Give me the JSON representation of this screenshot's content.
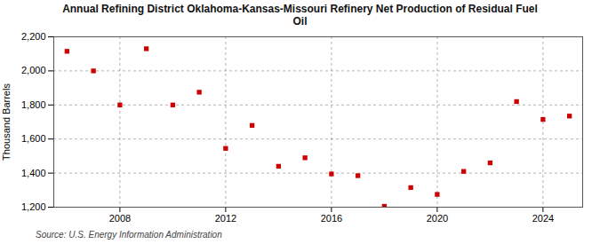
{
  "chart_data": {
    "type": "scatter",
    "title": "Annual Refining District Oklahoma-Kansas-Missouri Refinery Net Production of Residual Fuel\nOil",
    "ylabel": "Thousand Barrels",
    "annotations": [
      "Source: U.S. Energy Information Administration"
    ],
    "x": [
      2006,
      2007,
      2008,
      2009,
      2010,
      2011,
      2012,
      2013,
      2014,
      2015,
      2016,
      2017,
      2018,
      2019,
      2020,
      2021,
      2022,
      2023,
      2024,
      2025
    ],
    "values": [
      2115,
      2000,
      1800,
      2130,
      1800,
      1875,
      1545,
      1680,
      1440,
      1490,
      1395,
      1385,
      1205,
      1315,
      1275,
      1410,
      1460,
      1820,
      1715,
      1735
    ],
    "color": "#cc0000",
    "marker": "square",
    "xlim": [
      2005.5,
      2025.5
    ],
    "xticks": [
      2008,
      2012,
      2016,
      2020,
      2024
    ],
    "ylim": [
      1200,
      2200
    ],
    "yticks": [
      {
        "value": 1200,
        "label": "1,200"
      },
      {
        "value": 1400,
        "label": "1,400"
      },
      {
        "value": 1600,
        "label": "1,600"
      },
      {
        "value": 1800,
        "label": "1,800"
      },
      {
        "value": 2000,
        "label": "2,000"
      },
      {
        "value": 2200,
        "label": "2,200"
      }
    ],
    "grid": true
  }
}
